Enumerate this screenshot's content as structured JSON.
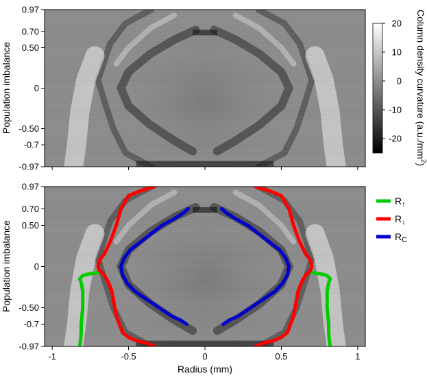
{
  "chart_data": [
    {
      "type": "heatmap",
      "panel": "top",
      "xlim": [
        -1.05,
        1.05
      ],
      "ylim": [
        -0.97,
        0.97
      ],
      "xlabel": "",
      "ylabel": "Population imbalance",
      "ytick_values": [
        0.97,
        0.7,
        0.5,
        0,
        -0.5,
        -0.7,
        -0.97
      ],
      "ytick_labels": [
        "0.97",
        "0.70",
        "0.50",
        "0",
        "-0.50",
        "-0.7",
        "-0.97"
      ],
      "xtick_values": [
        -1,
        -0.5,
        0,
        0.5,
        1
      ],
      "xtick_labels": [
        "",
        "",
        "",
        "",
        ""
      ],
      "colorbar": {
        "label": "Column density curvature (a.u./mm",
        "label_sup": "2",
        "label_close": ")",
        "range": [
          -25,
          20
        ],
        "tick_values": [
          20,
          10,
          0,
          -10,
          -20
        ],
        "tick_labels": [
          "20",
          "10",
          "0",
          "-10",
          "-20"
        ],
        "colormap": "gray"
      }
    },
    {
      "type": "line",
      "panel": "bottom",
      "xlim": [
        -1.05,
        1.05
      ],
      "ylim": [
        -0.97,
        0.97
      ],
      "xlabel": "Radius (mm)",
      "ylabel": "Population imbalance",
      "ytick_values": [
        0.97,
        0.7,
        0.5,
        0,
        -0.5,
        -0.7,
        -0.97
      ],
      "ytick_labels": [
        "0.97",
        "0.70",
        "0.50",
        "0",
        "-0.50",
        "-0.7",
        "-0.97"
      ],
      "xtick_values": [
        -1,
        -0.5,
        0,
        0.5,
        1
      ],
      "xtick_labels": [
        "-1",
        "-0.5",
        "0",
        "0.5",
        "1"
      ],
      "background": "heatmap (same as top panel)",
      "series": [
        {
          "name": "R↑",
          "name_main": "R",
          "name_sub": "↑",
          "color": "#00cc00",
          "points": [
            [
              0.82,
              -0.97
            ],
            [
              0.815,
              -0.9
            ],
            [
              0.81,
              -0.8
            ],
            [
              0.81,
              -0.7
            ],
            [
              0.805,
              -0.6
            ],
            [
              0.8,
              -0.5
            ],
            [
              0.8,
              -0.4
            ],
            [
              0.8,
              -0.3
            ],
            [
              0.81,
              -0.2
            ],
            [
              0.82,
              -0.15
            ],
            [
              0.8,
              -0.11
            ],
            [
              0.76,
              -0.09
            ],
            [
              0.72,
              -0.08
            ],
            [
              0.69,
              -0.07
            ]
          ]
        },
        {
          "name": "R↓",
          "name_main": "R",
          "name_sub": "↓",
          "color": "#ff0000",
          "points": [
            [
              0.33,
              -0.97
            ],
            [
              0.38,
              -0.93
            ],
            [
              0.45,
              -0.9
            ],
            [
              0.5,
              -0.86
            ],
            [
              0.54,
              -0.8
            ],
            [
              0.56,
              -0.7
            ],
            [
              0.58,
              -0.6
            ],
            [
              0.59,
              -0.5
            ],
            [
              0.6,
              -0.4
            ],
            [
              0.61,
              -0.3
            ],
            [
              0.63,
              -0.2
            ],
            [
              0.66,
              -0.1
            ],
            [
              0.69,
              -0.05
            ],
            [
              0.7,
              0.0
            ],
            [
              0.69,
              0.08
            ],
            [
              0.66,
              0.15
            ],
            [
              0.62,
              0.3
            ],
            [
              0.58,
              0.5
            ],
            [
              0.55,
              0.7
            ],
            [
              0.5,
              0.86
            ],
            [
              0.42,
              0.92
            ],
            [
              0.33,
              0.97
            ]
          ]
        },
        {
          "name": "RC",
          "name_main": "R",
          "name_sub": "C",
          "color": "#0000cc",
          "points": [
            [
              0.12,
              -0.7
            ],
            [
              0.16,
              -0.65
            ],
            [
              0.22,
              -0.6
            ],
            [
              0.3,
              -0.5
            ],
            [
              0.38,
              -0.4
            ],
            [
              0.46,
              -0.3
            ],
            [
              0.51,
              -0.2
            ],
            [
              0.54,
              -0.1
            ],
            [
              0.55,
              0.0
            ],
            [
              0.53,
              0.1
            ],
            [
              0.49,
              0.2
            ],
            [
              0.42,
              0.3
            ],
            [
              0.35,
              0.4
            ],
            [
              0.28,
              0.5
            ],
            [
              0.2,
              0.58
            ],
            [
              0.14,
              0.65
            ],
            [
              0.11,
              0.7
            ]
          ]
        }
      ]
    }
  ]
}
